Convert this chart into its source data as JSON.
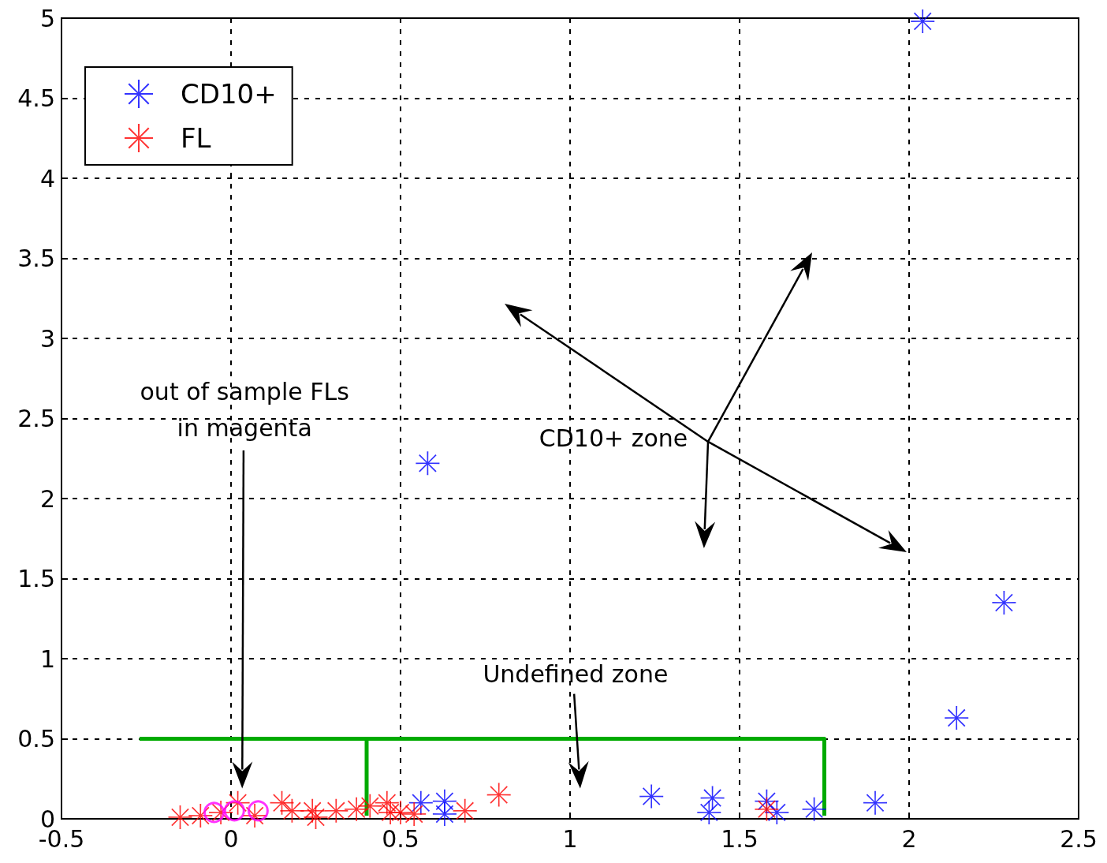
{
  "chart_data": {
    "type": "scatter",
    "xlim": [
      -0.5,
      2.5
    ],
    "xticks": [
      -0.5,
      0,
      0.5,
      1,
      1.5,
      2,
      2.5
    ],
    "ylim": [
      0,
      5
    ],
    "yticks": [
      0,
      0.5,
      1,
      1.5,
      2,
      2.5,
      3,
      3.5,
      4,
      4.5,
      5
    ],
    "grid": true,
    "legend": "top left",
    "annotations": [
      "out of sample FLs in magenta",
      "Undefined zone",
      "CD10+ zone"
    ],
    "series": [
      {
        "name": "CD10+",
        "color": "#0000ff",
        "marker": "star",
        "x": [
          2.04,
          0.58,
          2.28,
          2.14,
          1.9,
          1.72,
          1.61,
          1.58,
          1.42,
          1.41,
          1.24,
          0.63,
          0.63,
          0.56
        ],
        "values": [
          4.98,
          2.22,
          1.35,
          0.63,
          0.1,
          0.06,
          0.04,
          0.11,
          0.13,
          0.04,
          0.14,
          0.11,
          0.03,
          0.1
        ]
      },
      {
        "name": "FL",
        "color": "#ff0000",
        "marker": "star",
        "x": [
          -0.15,
          -0.09,
          -0.03,
          0.02,
          0.07,
          0.15,
          0.18,
          0.24,
          0.25,
          0.31,
          0.37,
          0.41,
          0.46,
          0.47,
          0.5,
          0.54,
          0.69,
          0.79,
          1.58
        ],
        "values": [
          0.01,
          0.02,
          0.04,
          0.1,
          0.02,
          0.1,
          0.05,
          0.05,
          0.01,
          0.05,
          0.06,
          0.08,
          0.1,
          0.04,
          0.04,
          0.03,
          0.05,
          0.15,
          0.06
        ]
      },
      {
        "color": "#ff00ff",
        "marker": "circle",
        "x": [
          -0.05,
          0.01,
          0.08
        ],
        "values": [
          0.04,
          0.05,
          0.05
        ]
      },
      {
        "type": "line",
        "color": "#00aa00",
        "marker": "none",
        "x": [
          -0.27,
          1.75,
          1.75
        ],
        "values": [
          0.5,
          0.5,
          0.02
        ]
      },
      {
        "type": "line",
        "color": "#00aa00",
        "marker": "none",
        "x": [
          0.4,
          0.4
        ],
        "values": [
          0.5,
          0.02
        ]
      }
    ]
  }
}
